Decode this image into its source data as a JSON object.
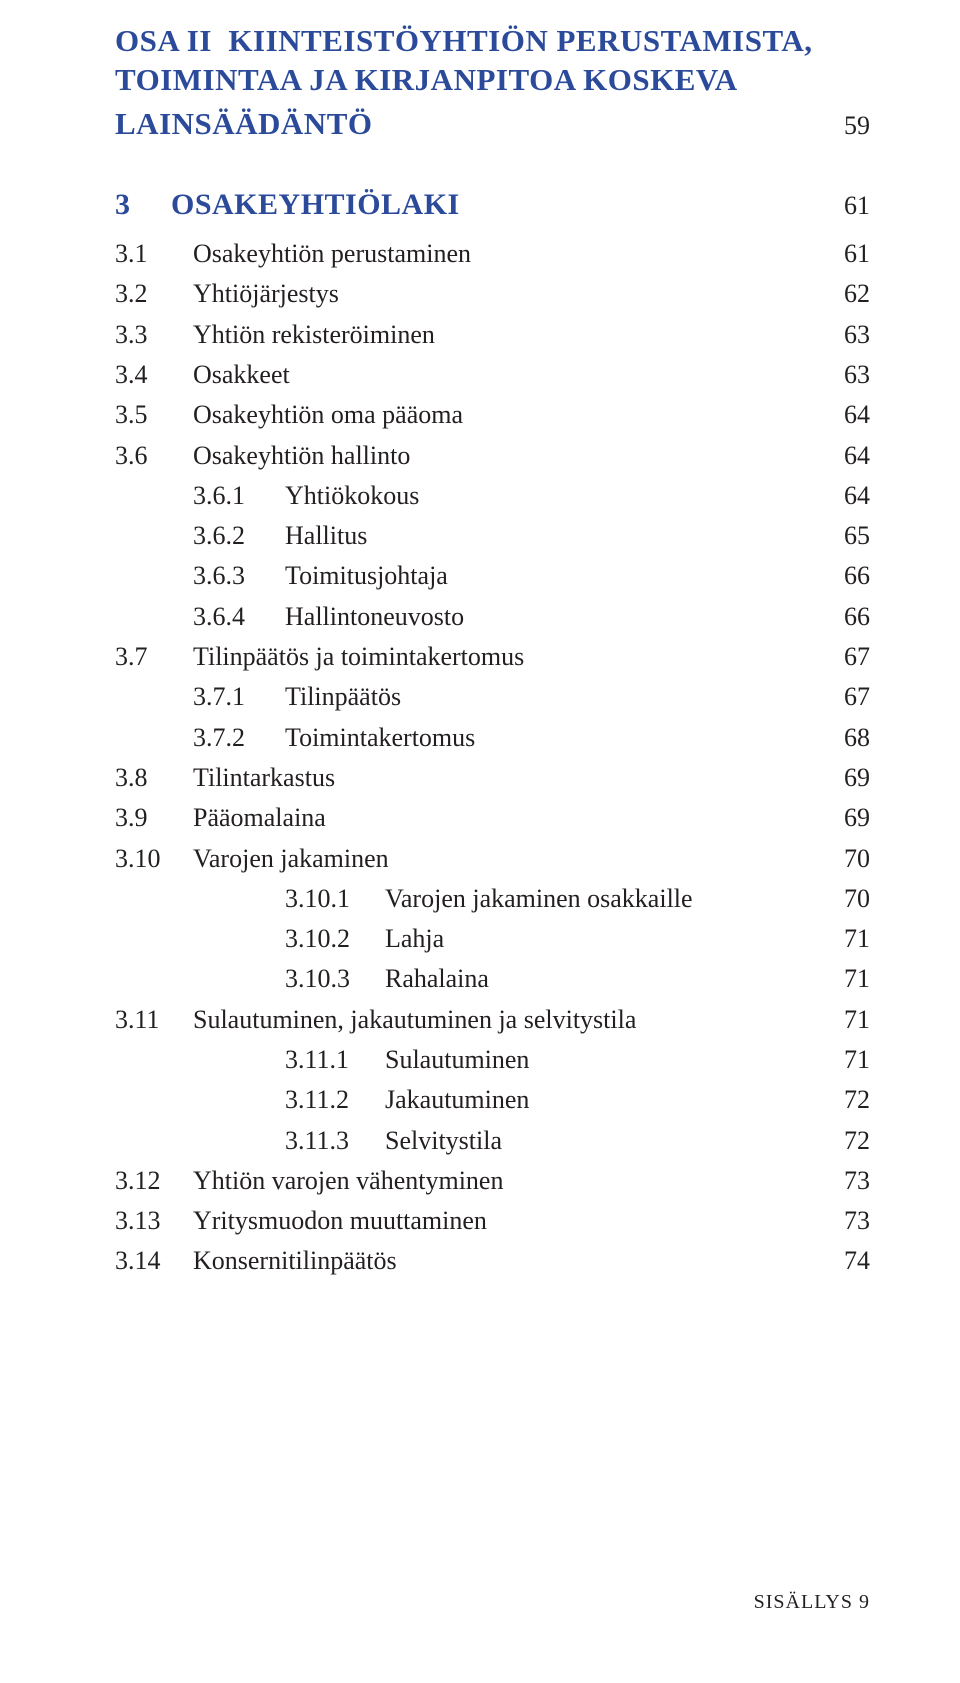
{
  "part": {
    "prefix": "OSA II",
    "line1": "KIINTEISTÖYHTIÖN PERUSTAMISTA,",
    "line2": "TOIMINTAA JA KIRJANPITOA KOSKEVA",
    "line3": "LAINSÄÄDÄNTÖ",
    "page": "59"
  },
  "chapter": {
    "num": "3",
    "label": "OSAKEYHTIÖLAKI",
    "page": "61"
  },
  "entries": [
    {
      "lvl": 1,
      "num": "3.1",
      "label": "Osakeyhtiön perustaminen",
      "page": "61"
    },
    {
      "lvl": 1,
      "num": "3.2",
      "label": "Yhtiöjärjestys",
      "page": "62"
    },
    {
      "lvl": 1,
      "num": "3.3",
      "label": "Yhtiön rekisteröiminen",
      "page": "63"
    },
    {
      "lvl": 1,
      "num": "3.4",
      "label": "Osakkeet",
      "page": "63"
    },
    {
      "lvl": 1,
      "num": "3.5",
      "label": "Osakeyhtiön oma pääoma",
      "page": "64"
    },
    {
      "lvl": 1,
      "num": "3.6",
      "label": "Osakeyhtiön hallinto",
      "page": "64"
    },
    {
      "lvl": 2,
      "num": "3.6.1",
      "label": "Yhtiökokous",
      "page": "64"
    },
    {
      "lvl": 2,
      "num": "3.6.2",
      "label": "Hallitus",
      "page": "65"
    },
    {
      "lvl": 2,
      "num": "3.6.3",
      "label": "Toimitusjohtaja",
      "page": "66"
    },
    {
      "lvl": 2,
      "num": "3.6.4",
      "label": "Hallintoneuvosto",
      "page": "66"
    },
    {
      "lvl": 1,
      "num": "3.7",
      "label": "Tilinpäätös ja toimintakertomus",
      "page": "67"
    },
    {
      "lvl": 2,
      "num": "3.7.1",
      "label": "Tilinpäätös",
      "page": "67"
    },
    {
      "lvl": 2,
      "num": "3.7.2",
      "label": "Toimintakertomus",
      "page": "68"
    },
    {
      "lvl": 1,
      "num": "3.8",
      "label": "Tilintarkastus",
      "page": "69"
    },
    {
      "lvl": 1,
      "num": "3.9",
      "label": "Pääomalaina",
      "page": "69"
    },
    {
      "lvl": 1,
      "num": "3.10",
      "label": "Varojen jakaminen",
      "page": "70"
    },
    {
      "lvl": 3,
      "num": "3.10.1",
      "label": "Varojen jakaminen osakkaille",
      "page": "70"
    },
    {
      "lvl": 3,
      "num": "3.10.2",
      "label": "Lahja",
      "page": "71"
    },
    {
      "lvl": 3,
      "num": "3.10.3",
      "label": "Rahalaina",
      "page": "71"
    },
    {
      "lvl": 1,
      "num": "3.11",
      "label": "Sulautuminen, jakautuminen ja selvitystila",
      "page": "71"
    },
    {
      "lvl": 3,
      "num": "3.11.1",
      "label": "Sulautuminen",
      "page": "71"
    },
    {
      "lvl": 3,
      "num": "3.11.2",
      "label": "Jakautuminen",
      "page": "72"
    },
    {
      "lvl": 3,
      "num": "3.11.3",
      "label": "Selvitystila",
      "page": "72"
    },
    {
      "lvl": 1,
      "num": "3.12",
      "label": "Yhtiön varojen vähentyminen",
      "page": "73"
    },
    {
      "lvl": 1,
      "num": "3.13",
      "label": "Yritysmuodon muuttaminen",
      "page": "73"
    },
    {
      "lvl": 1,
      "num": "3.14",
      "label": "Konsernitilinpäätös",
      "page": "74"
    }
  ],
  "footer": {
    "label": "SISÄLLYS",
    "page": "9"
  }
}
